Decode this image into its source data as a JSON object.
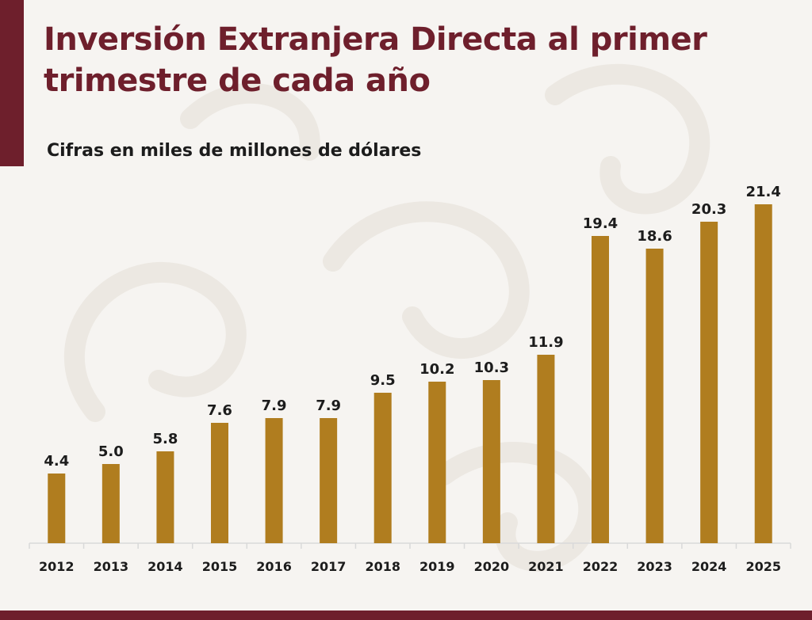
{
  "header": {
    "title_line1": "Inversión Extranjera Directa al primer",
    "title_line2": "trimestre de cada año",
    "subtitle": "Cifras en miles de millones de dólares"
  },
  "colors": {
    "accent": "#6e1f2c",
    "bar": "#b07d1f",
    "text": "#1c1c1c",
    "background": "#f6f4f1"
  },
  "chart_data": {
    "type": "bar",
    "categories": [
      "2012",
      "2013",
      "2014",
      "2015",
      "2016",
      "2017",
      "2018",
      "2019",
      "2020",
      "2021",
      "2022",
      "2023",
      "2024",
      "2025"
    ],
    "values": [
      4.4,
      5.0,
      5.8,
      7.6,
      7.9,
      7.9,
      9.5,
      10.2,
      10.3,
      11.9,
      19.4,
      18.6,
      20.3,
      21.4
    ],
    "value_labels": [
      "4.4",
      "5.0",
      "5.8",
      "7.6",
      "7.9",
      "7.9",
      "9.5",
      "10.2",
      "10.3",
      "11.9",
      "19.4",
      "18.6",
      "20.3",
      "21.4"
    ],
    "ylim": [
      0,
      22
    ],
    "grid": false,
    "data_labels": "above bars"
  }
}
